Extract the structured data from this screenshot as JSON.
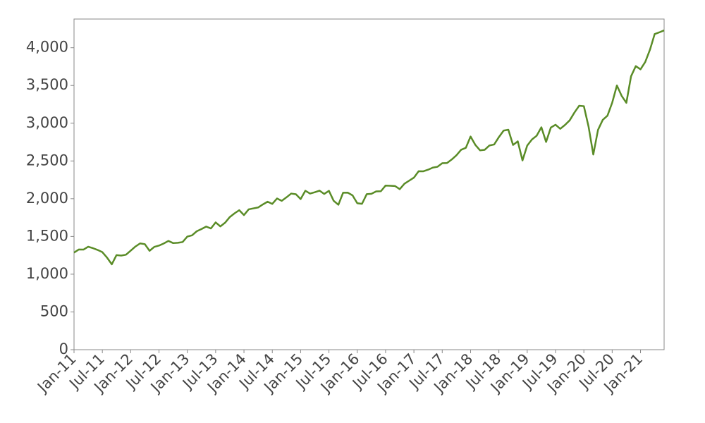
{
  "chart_data": {
    "type": "line",
    "x": [
      "2011-01",
      "2011-02",
      "2011-03",
      "2011-04",
      "2011-05",
      "2011-06",
      "2011-07",
      "2011-08",
      "2011-09",
      "2011-10",
      "2011-11",
      "2011-12",
      "2012-01",
      "2012-02",
      "2012-03",
      "2012-04",
      "2012-05",
      "2012-06",
      "2012-07",
      "2012-08",
      "2012-09",
      "2012-10",
      "2012-11",
      "2012-12",
      "2013-01",
      "2013-02",
      "2013-03",
      "2013-04",
      "2013-05",
      "2013-06",
      "2013-07",
      "2013-08",
      "2013-09",
      "2013-10",
      "2013-11",
      "2013-12",
      "2014-01",
      "2014-02",
      "2014-03",
      "2014-04",
      "2014-05",
      "2014-06",
      "2014-07",
      "2014-08",
      "2014-09",
      "2014-10",
      "2014-11",
      "2014-12",
      "2015-01",
      "2015-02",
      "2015-03",
      "2015-04",
      "2015-05",
      "2015-06",
      "2015-07",
      "2015-08",
      "2015-09",
      "2015-10",
      "2015-11",
      "2015-12",
      "2016-01",
      "2016-02",
      "2016-03",
      "2016-04",
      "2016-05",
      "2016-06",
      "2016-07",
      "2016-08",
      "2016-09",
      "2016-10",
      "2016-11",
      "2016-12",
      "2017-01",
      "2017-02",
      "2017-03",
      "2017-04",
      "2017-05",
      "2017-06",
      "2017-07",
      "2017-08",
      "2017-09",
      "2017-10",
      "2017-11",
      "2017-12",
      "2018-01",
      "2018-02",
      "2018-03",
      "2018-04",
      "2018-05",
      "2018-06",
      "2018-07",
      "2018-08",
      "2018-09",
      "2018-10",
      "2018-11",
      "2018-12",
      "2019-01",
      "2019-02",
      "2019-03",
      "2019-04",
      "2019-05",
      "2019-06",
      "2019-07",
      "2019-08",
      "2019-09",
      "2019-10",
      "2019-11",
      "2019-12",
      "2020-01",
      "2020-02",
      "2020-03",
      "2020-04",
      "2020-05",
      "2020-06",
      "2020-07",
      "2020-08",
      "2020-09",
      "2020-10",
      "2020-11",
      "2020-12",
      "2021-01",
      "2021-02",
      "2021-03",
      "2021-04",
      "2021-05",
      "2021-06"
    ],
    "series": [
      {
        "color": "#5a8c27",
        "values": [
          1286,
          1327,
          1326,
          1364,
          1345,
          1321,
          1292,
          1219,
          1131,
          1253,
          1247,
          1258,
          1312,
          1366,
          1408,
          1398,
          1310,
          1362,
          1379,
          1407,
          1441,
          1412,
          1416,
          1426,
          1498,
          1515,
          1569,
          1598,
          1631,
          1606,
          1686,
          1633,
          1682,
          1757,
          1806,
          1848,
          1783,
          1859,
          1872,
          1884,
          1924,
          1960,
          1931,
          2003,
          1972,
          2018,
          2068,
          2059,
          1995,
          2105,
          2068,
          2086,
          2107,
          2063,
          2104,
          1972,
          1920,
          2079,
          2080,
          2044,
          1940,
          1932,
          2060,
          2065,
          2097,
          2099,
          2174,
          2171,
          2168,
          2126,
          2199,
          2239,
          2279,
          2364,
          2363,
          2384,
          2412,
          2423,
          2470,
          2472,
          2519,
          2575,
          2648,
          2674,
          2824,
          2714,
          2641,
          2648,
          2705,
          2718,
          2816,
          2902,
          2914,
          2712,
          2760,
          2507,
          2704,
          2784,
          2834,
          2946,
          2752,
          2942,
          2980,
          2926,
          2977,
          3038,
          3141,
          3231,
          3226,
          2954,
          2585,
          2912,
          3044,
          3100,
          3271,
          3500,
          3363,
          3270,
          3622,
          3756,
          3714,
          3811,
          3973,
          4181,
          4204,
          4230
        ]
      }
    ],
    "xlim": [
      "2011-01",
      "2021-06"
    ],
    "xticks": [
      {
        "value": "2011-01",
        "label": "Jan-11"
      },
      {
        "value": "2011-07",
        "label": "Jul-11"
      },
      {
        "value": "2012-01",
        "label": "Jan-12"
      },
      {
        "value": "2012-07",
        "label": "Jul-12"
      },
      {
        "value": "2013-01",
        "label": "Jan-13"
      },
      {
        "value": "2013-07",
        "label": "Jul-13"
      },
      {
        "value": "2014-01",
        "label": "Jan-14"
      },
      {
        "value": "2014-07",
        "label": "Jul-14"
      },
      {
        "value": "2015-01",
        "label": "Jan-15"
      },
      {
        "value": "2015-07",
        "label": "Jul-15"
      },
      {
        "value": "2016-01",
        "label": "Jan-16"
      },
      {
        "value": "2016-07",
        "label": "Jul-16"
      },
      {
        "value": "2017-01",
        "label": "Jan-17"
      },
      {
        "value": "2017-07",
        "label": "Jul-17"
      },
      {
        "value": "2018-01",
        "label": "Jan-18"
      },
      {
        "value": "2018-07",
        "label": "Jul-18"
      },
      {
        "value": "2019-01",
        "label": "Jan-19"
      },
      {
        "value": "2019-07",
        "label": "Jul-19"
      },
      {
        "value": "2020-01",
        "label": "Jan-20"
      },
      {
        "value": "2020-07",
        "label": "Jul-20"
      },
      {
        "value": "2021-01",
        "label": "Jan-21"
      }
    ],
    "ylim": [
      0,
      4380
    ],
    "yticks": [
      0,
      500,
      {
        "value": 1000,
        "label": "1,000"
      },
      {
        "value": 1500,
        "label": "1,500"
      },
      {
        "value": 2000,
        "label": "2,000"
      },
      {
        "value": 2500,
        "label": "2,500"
      },
      {
        "value": 3000,
        "label": "3,000"
      },
      {
        "value": 3500,
        "label": "3,500"
      },
      {
        "value": 4000,
        "label": "4,000"
      }
    ],
    "grid": false
  }
}
